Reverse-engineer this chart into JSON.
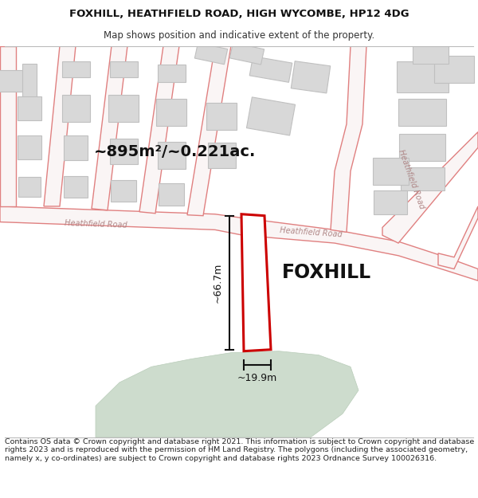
{
  "title_line1": "FOXHILL, HEATHFIELD ROAD, HIGH WYCOMBE, HP12 4DG",
  "title_line2": "Map shows position and indicative extent of the property.",
  "area_label": "~895m²/~0.221ac.",
  "property_name": "FOXHILL",
  "dim_height": "~66.7m",
  "dim_width": "~19.9m",
  "road_label_left": "Heathfield Road",
  "road_label_mid": "Heathfield Road",
  "road_label_right": "Heathfield Road",
  "footer": "Contains OS data © Crown copyright and database right 2021. This information is subject to Crown copyright and database rights 2023 and is reproduced with the permission of HM Land Registry. The polygons (including the associated geometry, namely x, y co-ordinates) are subject to Crown copyright and database rights 2023 Ordnance Survey 100026316.",
  "bg_color": "#ffffff",
  "road_color": "#e08080",
  "building_color": "#d8d8d8",
  "building_edge": "#c0c0c0",
  "plot_outline_color": "#cc0000",
  "dim_line_color": "#111111",
  "green_color": "#cddccd",
  "green_edge": "#b8ccb8",
  "title_fontsize": 9.5,
  "subtitle_fontsize": 8.5,
  "area_fontsize": 14,
  "property_fontsize": 17,
  "road_label_fontsize": 7,
  "dim_fontsize": 9,
  "footer_fontsize": 6.8
}
